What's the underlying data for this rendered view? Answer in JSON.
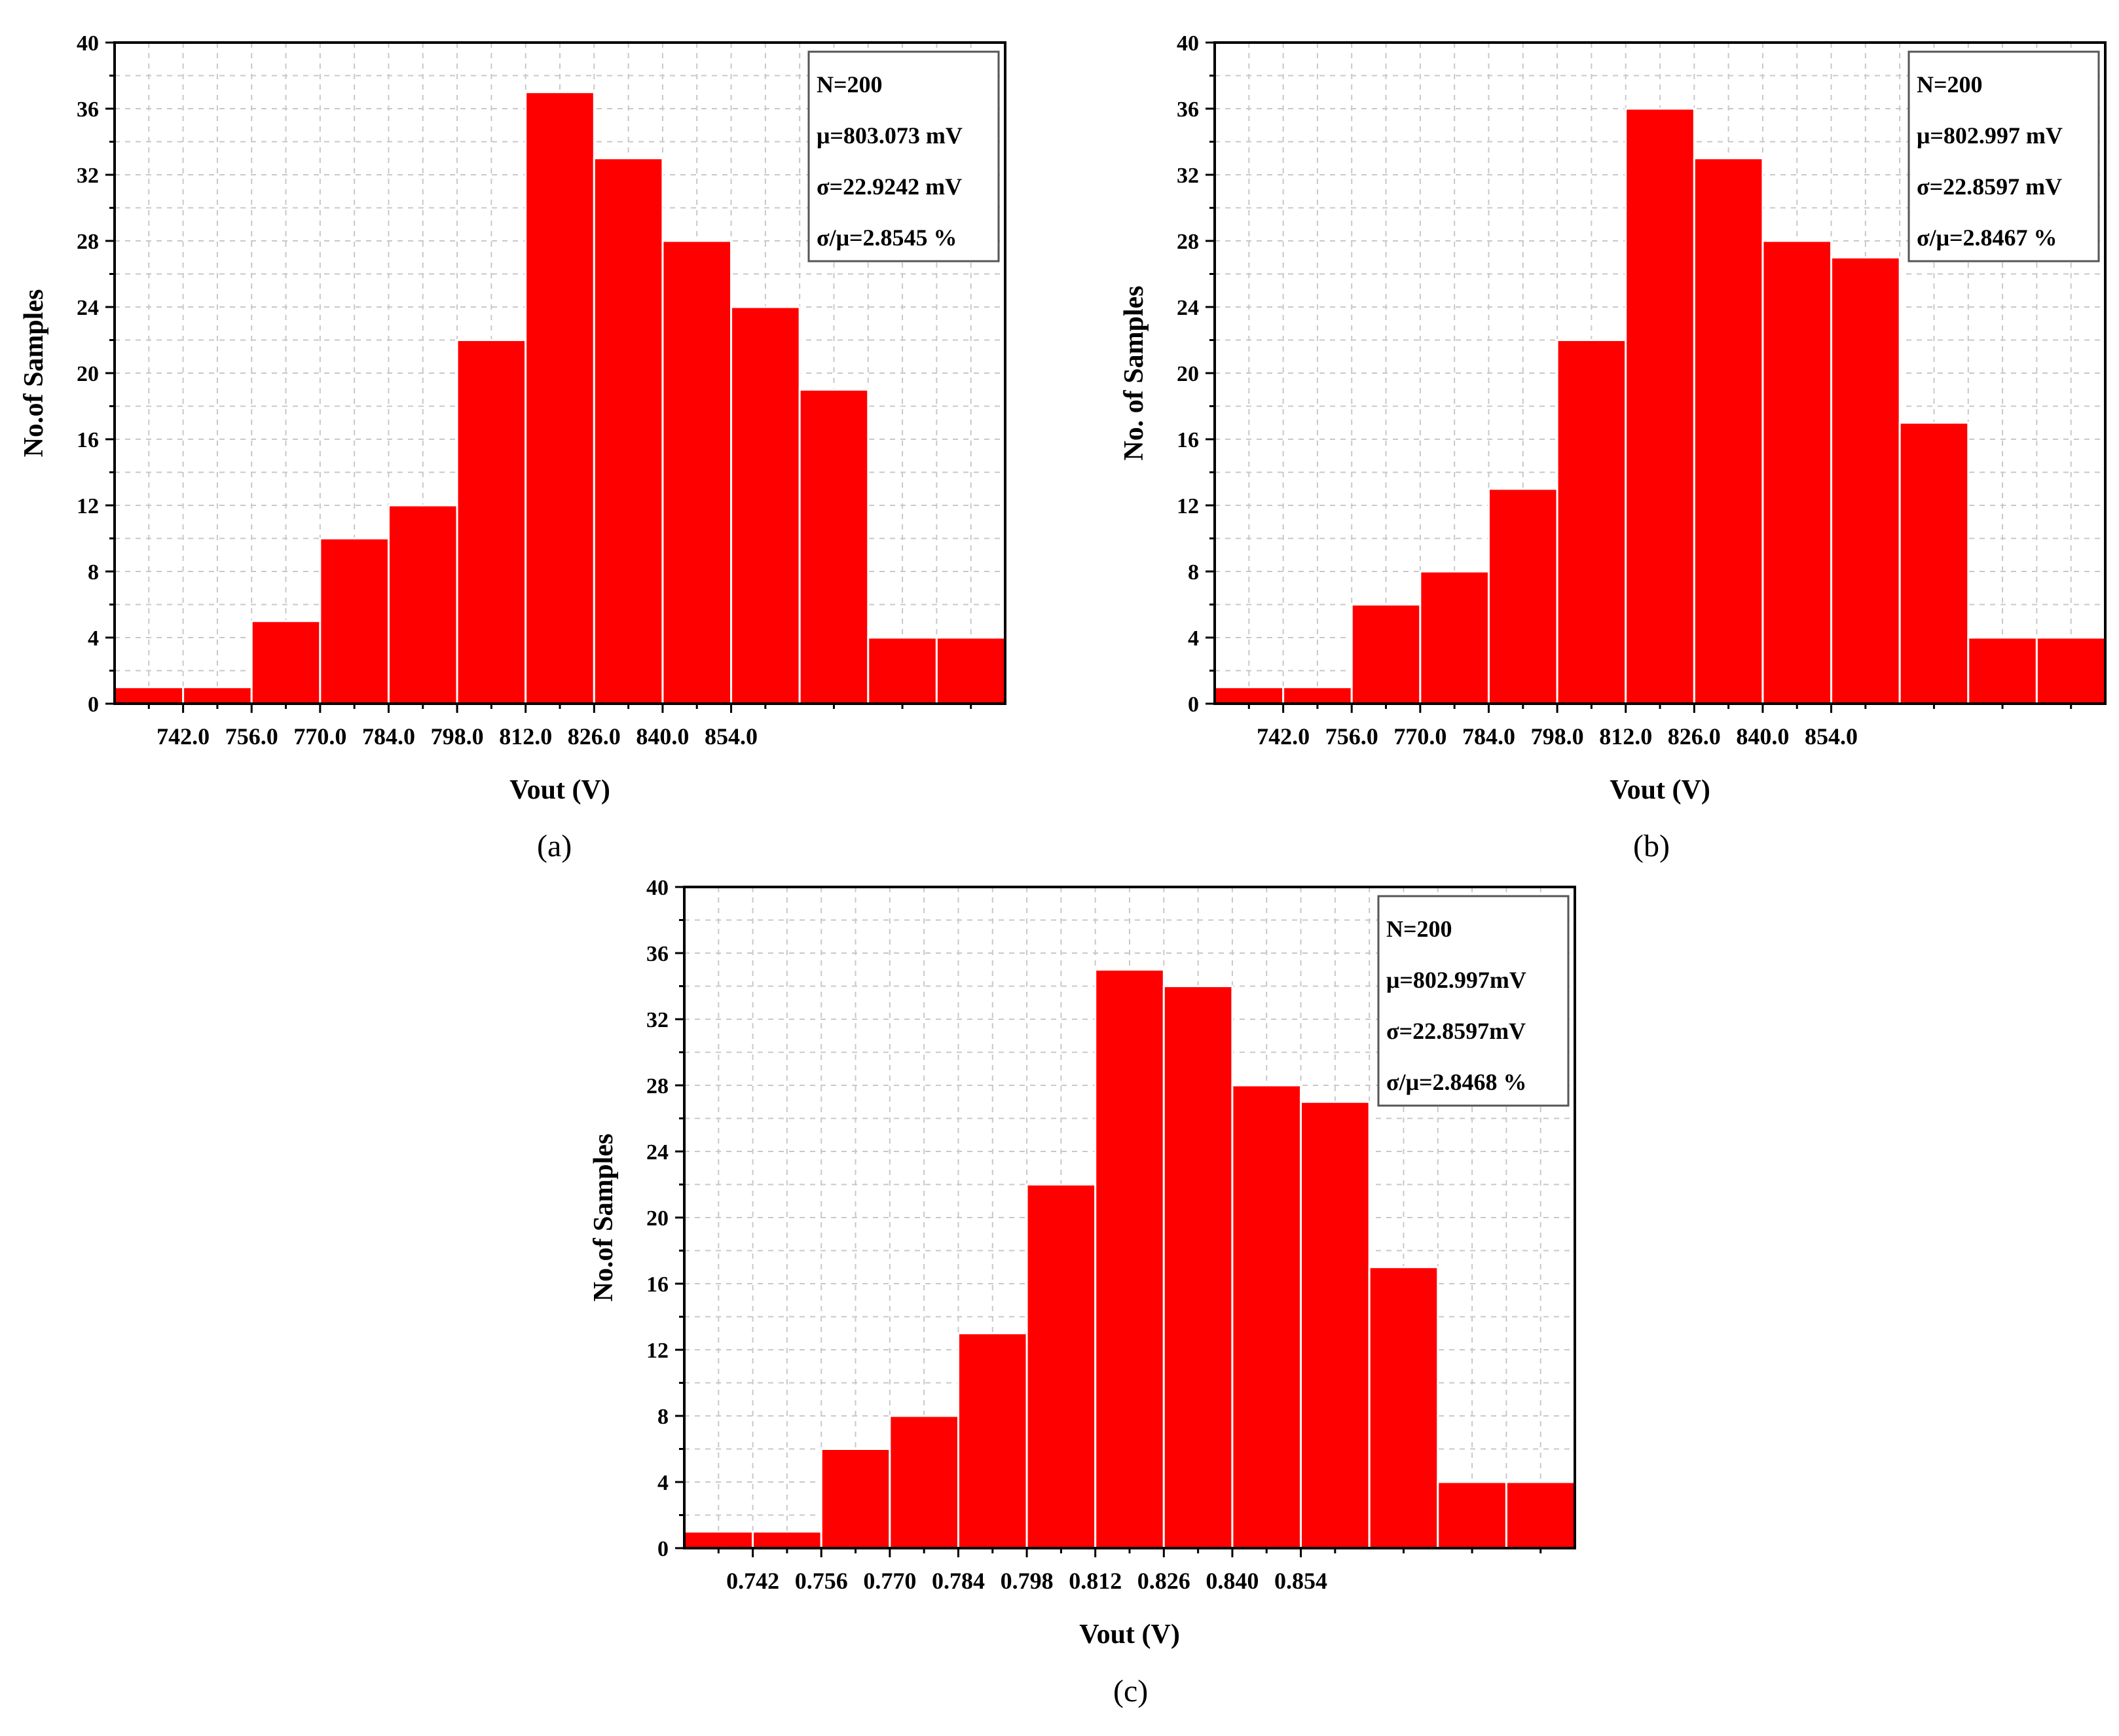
{
  "chart_data": [
    {
      "type": "bar",
      "panel": "(a)",
      "ylabel": "No.of Samples",
      "xlabel": "Vout (V)",
      "ylim": [
        0,
        40
      ],
      "yticks": [
        "0",
        "4",
        "8",
        "12",
        "16",
        "20",
        "24",
        "28",
        "32",
        "36",
        "40"
      ],
      "xtick_labels": [
        "742.0",
        "756.0",
        "770.0",
        "784.0",
        "798.0",
        "812.0",
        "826.0",
        "840.0",
        "854.0"
      ],
      "values": [
        1,
        1,
        5,
        10,
        12,
        22,
        37,
        33,
        28,
        24,
        19,
        4,
        4
      ],
      "stats": [
        "N=200",
        "μ=803.073 mV",
        "σ=22.9242 mV",
        "σ/μ=2.8545 %"
      ]
    },
    {
      "type": "bar",
      "panel": "(b)",
      "ylabel": "No. of Samples",
      "xlabel": "Vout (V)",
      "ylim": [
        0,
        40
      ],
      "yticks": [
        "0",
        "4",
        "8",
        "12",
        "16",
        "20",
        "24",
        "28",
        "32",
        "36",
        "40"
      ],
      "xtick_labels": [
        "742.0",
        "756.0",
        "770.0",
        "784.0",
        "798.0",
        "812.0",
        "826.0",
        "840.0",
        "854.0"
      ],
      "values": [
        1,
        1,
        6,
        8,
        13,
        22,
        36,
        33,
        28,
        27,
        17,
        4,
        4
      ],
      "stats": [
        "N=200",
        "μ=802.997 mV",
        "σ=22.8597 mV",
        "σ/μ=2.8467 %"
      ]
    },
    {
      "type": "bar",
      "panel": "(c)",
      "ylabel": "No.of Samples",
      "xlabel": "Vout (V)",
      "ylim": [
        0,
        40
      ],
      "yticks": [
        "0",
        "4",
        "8",
        "12",
        "16",
        "20",
        "24",
        "28",
        "32",
        "36",
        "40"
      ],
      "xtick_labels": [
        "0.742",
        "0.756",
        "0.770",
        "0.784",
        "0.798",
        "0.812",
        "0.826",
        "0.840",
        "0.854"
      ],
      "values": [
        1,
        1,
        6,
        8,
        13,
        22,
        35,
        34,
        28,
        27,
        17,
        4,
        4
      ],
      "stats": [
        "N=200",
        "μ=802.997mV",
        "σ=22.8597mV",
        "σ/μ=2.8468 %"
      ]
    }
  ],
  "colors": {
    "bar": "#ff0000"
  }
}
